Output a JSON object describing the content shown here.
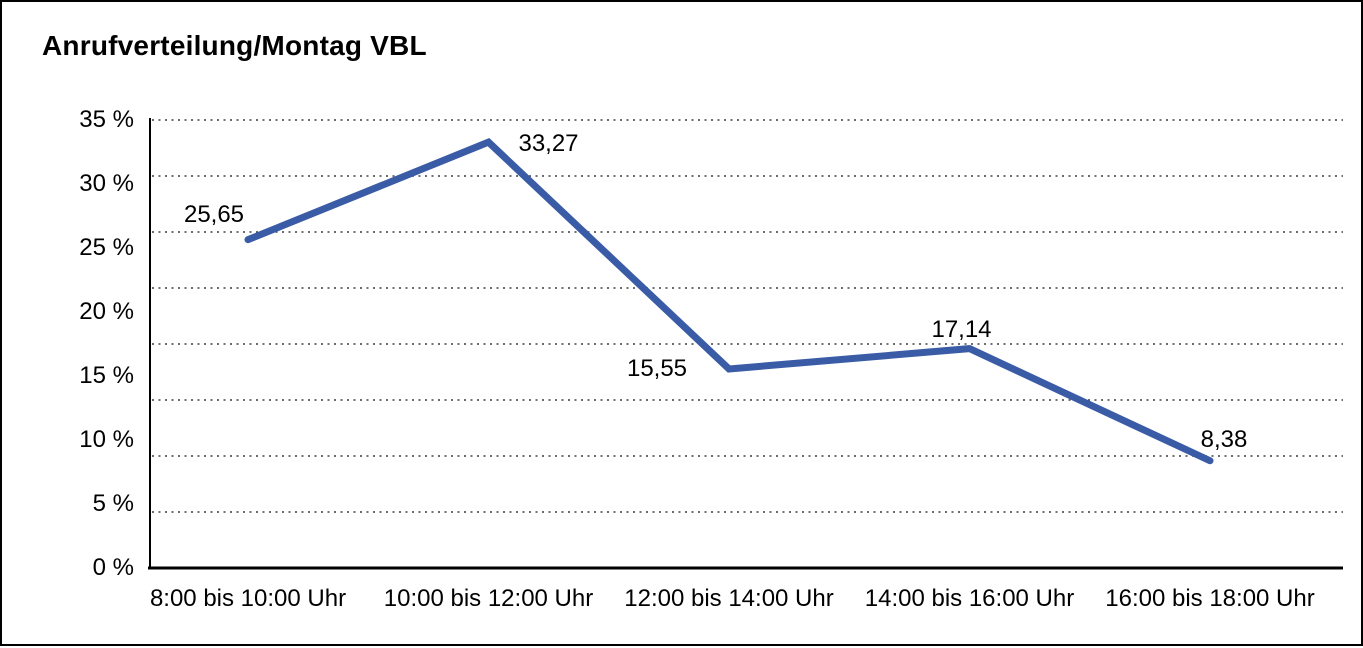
{
  "title": "Anrufverteilung/Montag VBL",
  "chart_data": {
    "type": "line",
    "title": "Anrufverteilung/Montag VBL",
    "categories": [
      "8:00 bis 10:00 Uhr",
      "10:00 bis 12:00 Uhr",
      "12:00 bis 14:00 Uhr",
      "14:00 bis 16:00 Uhr",
      "16:00 bis 18:00 Uhr"
    ],
    "series": [
      {
        "name": "Anrufverteilung Montag VBL",
        "values": [
          25.65,
          33.27,
          15.55,
          17.14,
          8.38
        ]
      }
    ],
    "value_labels": [
      "25,65",
      "33,27",
      "15,55",
      "17,14",
      "8,38"
    ],
    "y_tick_labels": [
      "35 %",
      "30 %",
      "25 %",
      "20 %",
      "15 %",
      "10 %",
      "5 %",
      "0 %"
    ],
    "ylim": [
      0,
      35
    ],
    "y_unit": "%",
    "grid": "horizontal-dotted",
    "legend": "none",
    "line_color": "#3A5BA5",
    "text_color": "#000000",
    "grid_color": "#3f3f3f",
    "axis_color": "#000000",
    "background_color": "#ffffff"
  }
}
